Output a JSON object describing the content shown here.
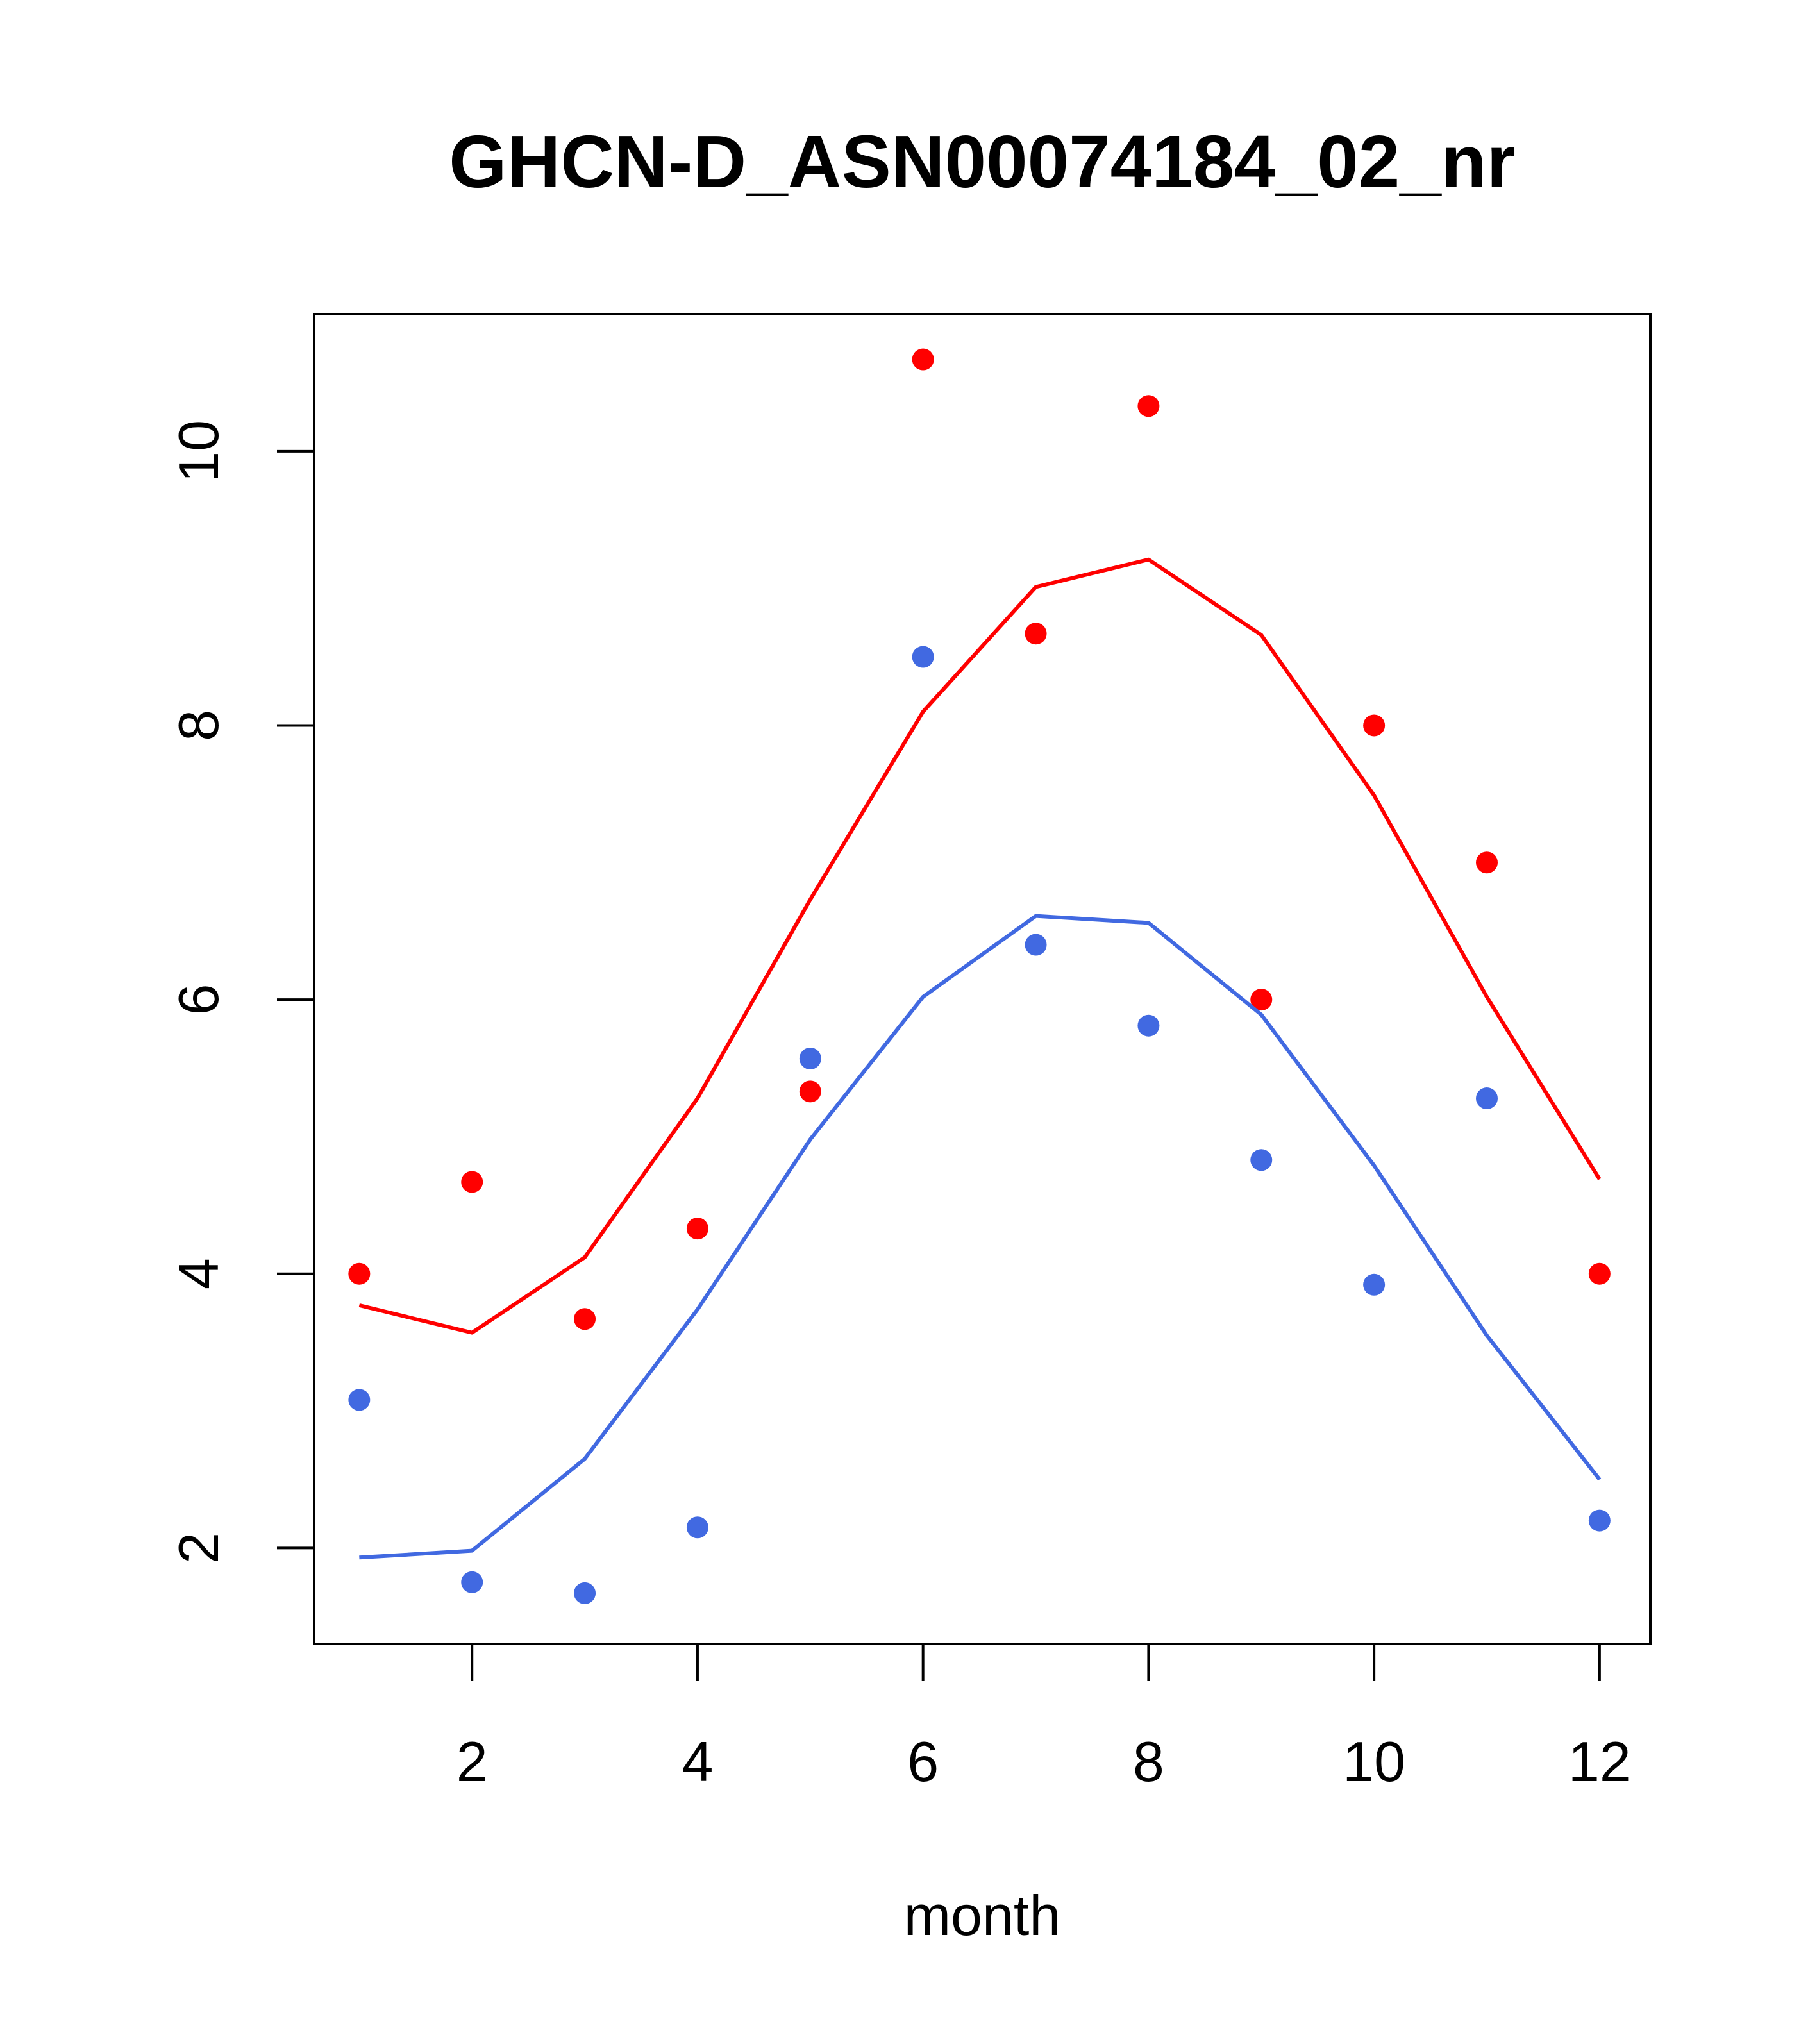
{
  "chart_data": {
    "type": "line",
    "title": "GHCN-D_ASN00074184_02_nr",
    "xlabel": "month",
    "ylabel": "",
    "xlim": [
      0.6,
      12.45
    ],
    "ylim": [
      1.3,
      11.0
    ],
    "xticks": [
      2,
      4,
      6,
      8,
      10,
      12
    ],
    "xtick_labels": [
      "2",
      "4",
      "6",
      "8",
      "10",
      "12"
    ],
    "yticks": [
      2,
      4,
      6,
      8,
      10
    ],
    "ytick_labels": [
      "2",
      "4",
      "6",
      "8",
      "10"
    ],
    "grid": false,
    "legend": "none",
    "x": [
      1,
      2,
      3,
      4,
      5,
      6,
      7,
      8,
      9,
      10,
      11,
      12
    ],
    "series": [
      {
        "color": "#ff0000",
        "kind": "line",
        "values": [
          3.77,
          3.57,
          4.12,
          5.28,
          6.73,
          8.1,
          9.01,
          9.21,
          8.66,
          7.49,
          6.02,
          4.69
        ]
      },
      {
        "color": "#ff0000",
        "kind": "points",
        "values": [
          4.0,
          4.67,
          3.67,
          4.33,
          5.33,
          10.67,
          8.67,
          10.33,
          6.0,
          8.0,
          7.0,
          4.0
        ]
      },
      {
        "color": "#4169e1",
        "kind": "line",
        "values": [
          1.93,
          1.98,
          2.65,
          3.74,
          4.98,
          6.02,
          6.61,
          6.56,
          5.89,
          4.79,
          3.55,
          2.5
        ]
      },
      {
        "color": "#4169e1",
        "kind": "points",
        "values": [
          3.08,
          1.75,
          1.67,
          2.15,
          5.57,
          8.5,
          6.4,
          5.81,
          4.83,
          3.92,
          5.28,
          2.2
        ]
      }
    ]
  }
}
